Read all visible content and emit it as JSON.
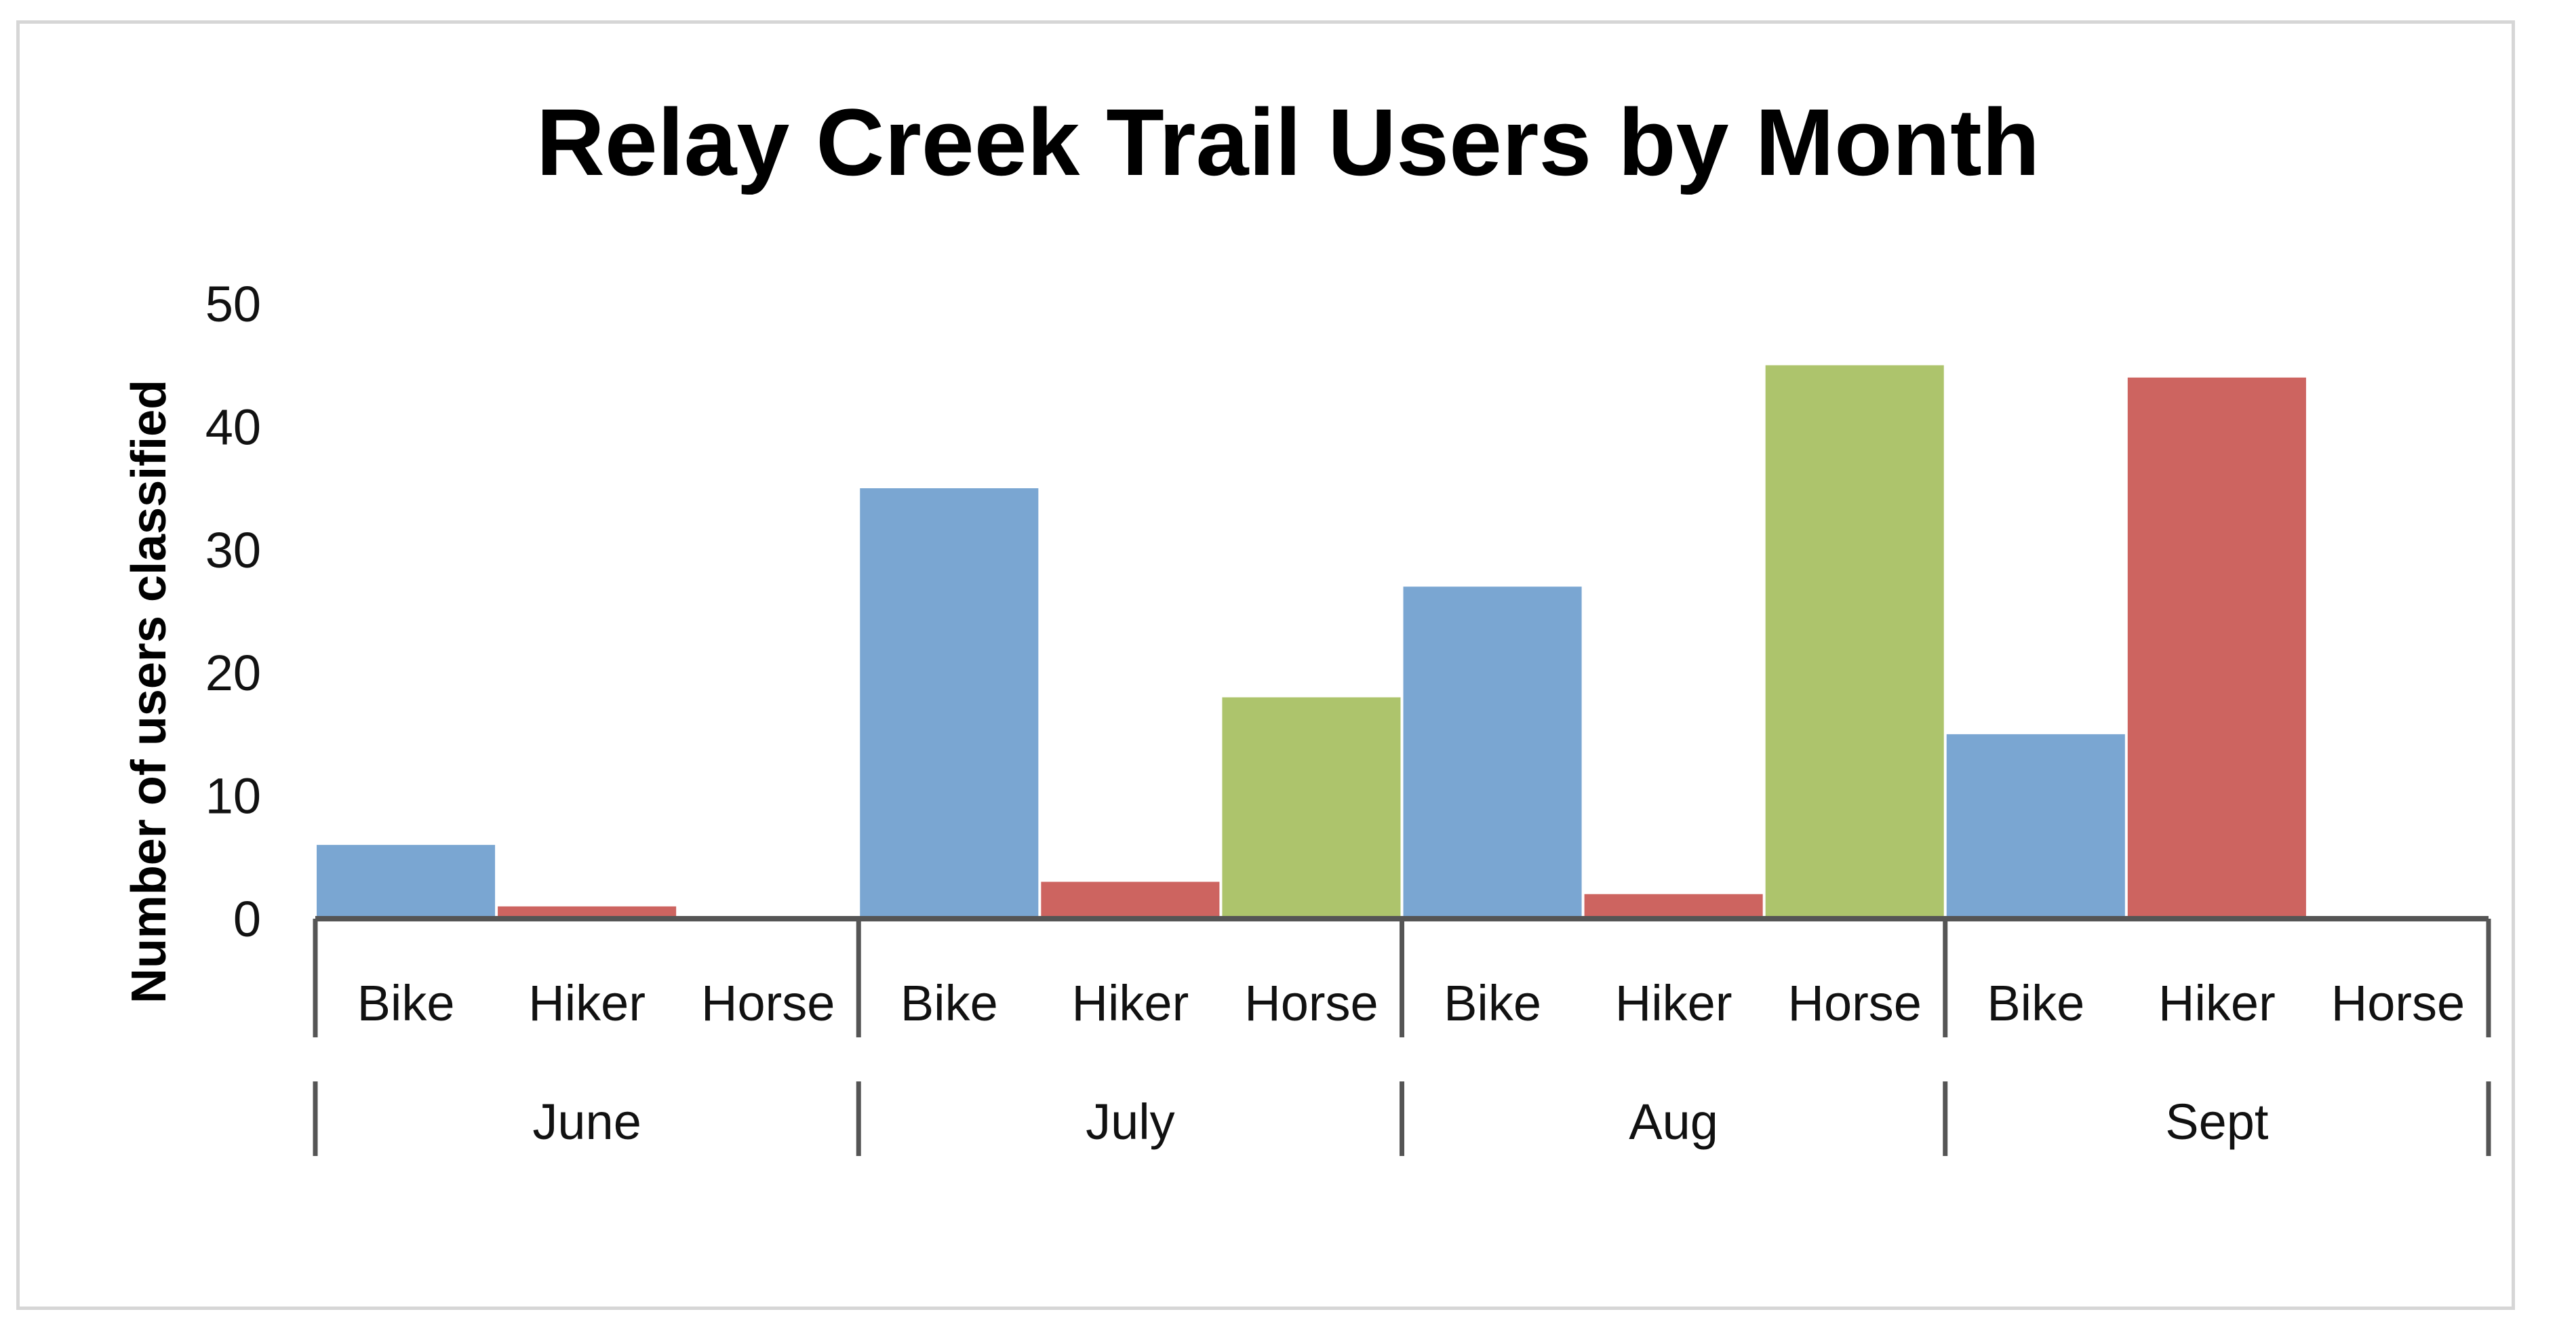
{
  "chart_data": {
    "type": "bar",
    "title": "Relay Creek Trail Users by Month",
    "ylabel": "Number of users classified",
    "xlabel": "",
    "ylim": [
      0,
      50
    ],
    "yticks": [
      "0",
      "10",
      "20",
      "30",
      "40",
      "50"
    ],
    "grid": false,
    "groups": [
      {
        "label": "June",
        "categories": [
          "Bike",
          "Hiker",
          "Horse"
        ],
        "values": [
          6,
          1,
          0
        ]
      },
      {
        "label": "July",
        "categories": [
          "Bike",
          "Hiker",
          "Horse"
        ],
        "values": [
          35,
          3,
          18
        ]
      },
      {
        "label": "Aug",
        "categories": [
          "Bike",
          "Hiker",
          "Horse"
        ],
        "values": [
          27,
          2,
          45
        ]
      },
      {
        "label": "Sept",
        "categories": [
          "Bike",
          "Hiker",
          "Horse"
        ],
        "values": [
          15,
          44,
          0
        ]
      }
    ],
    "colors": {
      "Bike": "#7aa6d2",
      "Hiker": "#cd6460",
      "Horse": "#adc46c"
    },
    "axis_color": "#555555"
  }
}
